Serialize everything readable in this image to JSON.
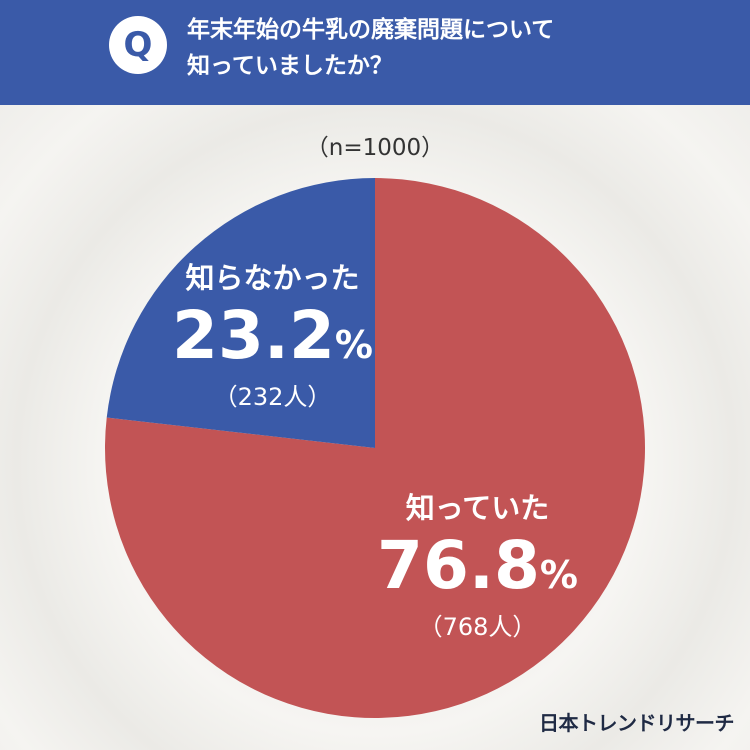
{
  "question": {
    "badge": "Q",
    "lines": [
      "年末年始の牛乳の廃棄問題について",
      "知っていましたか？"
    ]
  },
  "sample_note": "（n=1000）",
  "brand": "日本トレンドリサーチ",
  "colors": {
    "header": "#3a5aa8",
    "knew": "#c25455",
    "did_not_know": "#3a5aa8"
  },
  "chart_data": {
    "type": "pie",
    "total": 1000,
    "slices": [
      {
        "label": "知っていた",
        "percent": 76.8,
        "count_text": "（768人）",
        "color": "#c25455"
      },
      {
        "label": "知らなかった",
        "percent": 23.2,
        "count_text": "（232人）",
        "color": "#3a5aa8"
      }
    ]
  }
}
